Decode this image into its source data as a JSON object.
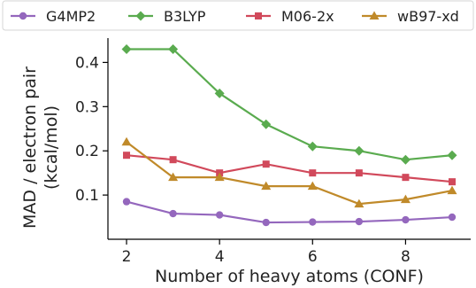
{
  "chart_data": {
    "type": "line",
    "title": "",
    "xlabel": "Number of heavy atoms (CONF)",
    "ylabel": "MAD / electron pair (kcal/mol)",
    "ylabel_lines": [
      "MAD / electron pair",
      "(kcal/mol)"
    ],
    "x": [
      2,
      3,
      4,
      5,
      6,
      7,
      8,
      9
    ],
    "xlim": [
      1.6,
      9.4
    ],
    "ylim": [
      0.0,
      0.455
    ],
    "xticks": [
      2,
      4,
      6,
      8
    ],
    "yticks": [
      0.1,
      0.2,
      0.3,
      0.4
    ],
    "xtick_labels": [
      "2",
      "4",
      "6",
      "8"
    ],
    "ytick_labels": [
      "0.1",
      "0.2",
      "0.3",
      "0.4"
    ],
    "grid": false,
    "legend_position": "top",
    "series": [
      {
        "name": "G4MP2",
        "color": "#9467bd",
        "marker": "circle",
        "values": [
          0.085,
          0.058,
          0.055,
          0.038,
          0.039,
          0.04,
          0.044,
          0.05
        ]
      },
      {
        "name": "B3LYP",
        "color": "#5aab4f",
        "marker": "diamond",
        "values": [
          0.43,
          0.43,
          0.33,
          0.26,
          0.21,
          0.2,
          0.18,
          0.19
        ]
      },
      {
        "name": "M06-2x",
        "color": "#d1495b",
        "marker": "square",
        "values": [
          0.19,
          0.18,
          0.15,
          0.17,
          0.15,
          0.15,
          0.14,
          0.13
        ]
      },
      {
        "name": "wB97-xd",
        "color": "#c08a2a",
        "marker": "triangle",
        "values": [
          0.22,
          0.14,
          0.14,
          0.12,
          0.12,
          0.08,
          0.09,
          0.11
        ]
      }
    ]
  }
}
